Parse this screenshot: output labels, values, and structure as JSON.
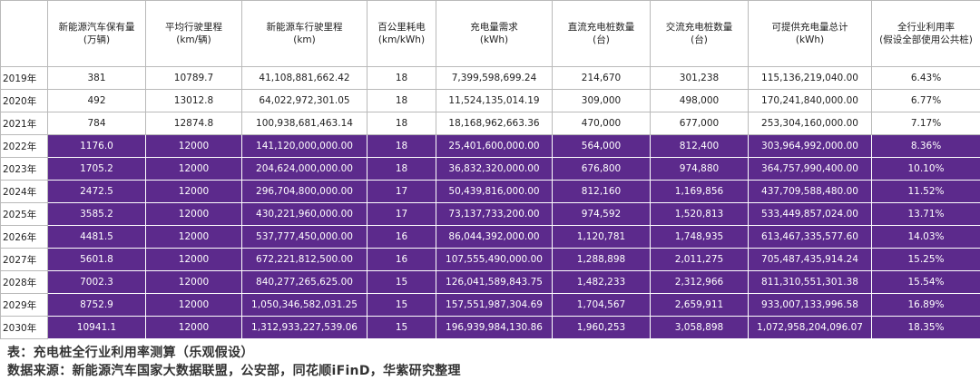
{
  "headers": [
    "",
    "新能源汽车保有量\n(万辆)",
    "平均行驶里程\n(km/辆)",
    "新能源车行驶里程\n(km)",
    "百公里耗电\n(km/kWh)",
    "充电量需求\n(kWh)",
    "直流充电桩数量\n(台)",
    "交流充电桩数量\n(台)",
    "可提供充电量总计\n(kWh)",
    "全行业利用率\n(假设全部使用公共桩)"
  ],
  "rows": [
    {
      "year": "2019年",
      "highlight": false,
      "values": [
        "381",
        "10789.7",
        "41,108,881,662.42",
        "18",
        "7,399,598,699.24",
        "214,670",
        "301,238",
        "115,136,219,040.00",
        "6.43%"
      ]
    },
    {
      "year": "2020年",
      "highlight": false,
      "values": [
        "492",
        "13012.8",
        "64,022,972,301.05",
        "18",
        "11,524,135,014.19",
        "309,000",
        "498,000",
        "170,241,840,000.00",
        "6.77%"
      ]
    },
    {
      "year": "2021年",
      "highlight": false,
      "values": [
        "784",
        "12874.8",
        "100,938,681,463.14",
        "18",
        "18,168,962,663.36",
        "470,000",
        "677,000",
        "253,304,160,000.00",
        "7.17%"
      ]
    },
    {
      "year": "2022年",
      "highlight": true,
      "values": [
        "1176.0",
        "12000",
        "141,120,000,000.00",
        "18",
        "25,401,600,000.00",
        "564,000",
        "812,400",
        "303,964,992,000.00",
        "8.36%"
      ]
    },
    {
      "year": "2023年",
      "highlight": true,
      "values": [
        "1705.2",
        "12000",
        "204,624,000,000.00",
        "18",
        "36,832,320,000.00",
        "676,800",
        "974,880",
        "364,757,990,400.00",
        "10.10%"
      ]
    },
    {
      "year": "2024年",
      "highlight": true,
      "values": [
        "2472.5",
        "12000",
        "296,704,800,000.00",
        "17",
        "50,439,816,000.00",
        "812,160",
        "1,169,856",
        "437,709,588,480.00",
        "11.52%"
      ]
    },
    {
      "year": "2025年",
      "highlight": true,
      "values": [
        "3585.2",
        "12000",
        "430,221,960,000.00",
        "17",
        "73,137,733,200.00",
        "974,592",
        "1,520,813",
        "533,449,857,024.00",
        "13.71%"
      ]
    },
    {
      "year": "2026年",
      "highlight": true,
      "values": [
        "4481.5",
        "12000",
        "537,777,450,000.00",
        "16",
        "86,044,392,000.00",
        "1,120,781",
        "1,748,935",
        "613,467,335,577.60",
        "14.03%"
      ]
    },
    {
      "year": "2027年",
      "highlight": true,
      "values": [
        "5601.8",
        "12000",
        "672,221,812,500.00",
        "16",
        "107,555,490,000.00",
        "1,288,898",
        "2,011,275",
        "705,487,435,914.24",
        "15.25%"
      ]
    },
    {
      "year": "2028年",
      "highlight": true,
      "values": [
        "7002.3",
        "12000",
        "840,277,265,625.00",
        "15",
        "126,041,589,843.75",
        "1,482,233",
        "2,312,966",
        "811,310,551,301.38",
        "15.54%"
      ]
    },
    {
      "year": "2029年",
      "highlight": true,
      "values": [
        "8752.9",
        "12000",
        "1,050,346,582,031.25",
        "15",
        "157,551,987,304.69",
        "1,704,567",
        "2,659,911",
        "933,007,133,996.58",
        "16.89%"
      ]
    },
    {
      "year": "2030年",
      "highlight": true,
      "values": [
        "10941.1",
        "12000",
        "1,312,933,227,539.06",
        "15",
        "196,939,984,130.86",
        "1,960,253",
        "3,058,898",
        "1,072,958,204,096.07",
        "18.35%"
      ]
    }
  ],
  "caption": {
    "title": "表：充电桩全行业利用率测算（乐观假设）",
    "source": "数据来源：新能源汽车国家大数据联盟，公安部，同花顺iFinD，华紫研究整理"
  },
  "colors": {
    "highlight_fill": "#5c2a8c"
  }
}
